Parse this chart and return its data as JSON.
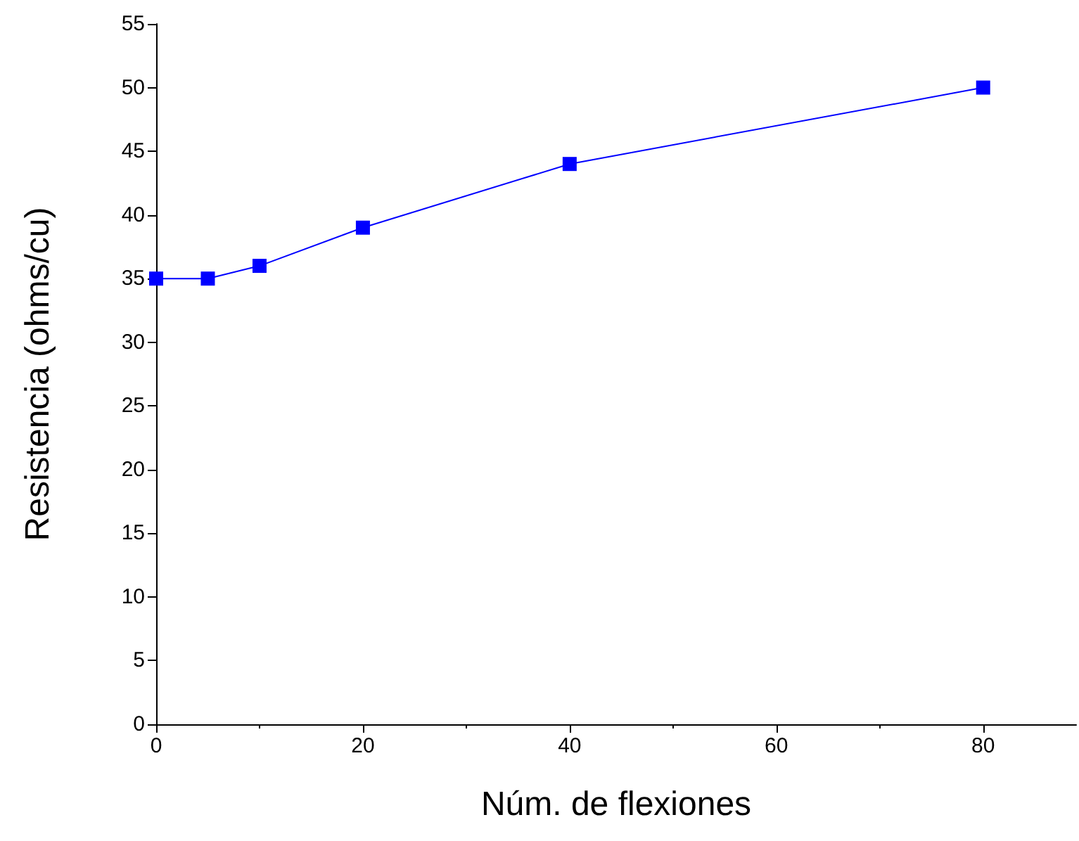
{
  "chart_data": {
    "type": "line",
    "xlabel": "Núm. de flexiones",
    "ylabel": "Resistencia (ohms/cu)",
    "x": [
      0,
      5,
      10,
      20,
      40,
      80
    ],
    "series": [
      {
        "color": "#0000ff",
        "values": [
          35,
          35,
          36,
          39,
          44,
          50
        ]
      }
    ],
    "xlim": [
      0,
      89
    ],
    "xticks": [
      0,
      20,
      40,
      60,
      80
    ],
    "ylim": [
      0,
      55
    ],
    "yticks": [
      0,
      5,
      10,
      15,
      20,
      25,
      30,
      35,
      40,
      45,
      50,
      55
    ],
    "grid": false,
    "marker": "square",
    "line_style": "solid"
  }
}
